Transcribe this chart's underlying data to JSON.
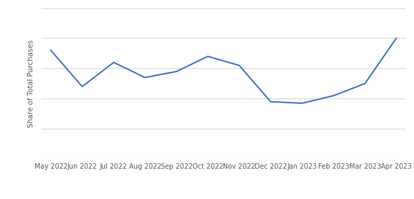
{
  "x_labels": [
    "May 2022",
    "Jun 2022",
    "Jul 2022",
    "Aug 2022",
    "Sep 2022",
    "Oct 2022",
    "Nov 2022",
    "Dec 2022",
    "Jan 2023",
    "Feb 2023",
    "Mar 2023",
    "Apr 2023"
  ],
  "y_values": [
    0.72,
    0.48,
    0.64,
    0.54,
    0.58,
    0.68,
    0.62,
    0.38,
    0.37,
    0.42,
    0.5,
    0.8
  ],
  "line_color": "#4472C4",
  "line_width": 1.5,
  "ylabel": "Share of Total Purchases",
  "ylabel_fontsize": 7.5,
  "ylabel_color": "#595959",
  "xlabel_fontsize": 7.0,
  "xlabel_color": "#595959",
  "background_color": "#ffffff",
  "grid_color": "#d9d9d9",
  "ylim": [
    0.0,
    1.0
  ],
  "ytick_values": [
    0.0,
    0.2,
    0.4,
    0.6,
    0.8,
    1.0
  ]
}
